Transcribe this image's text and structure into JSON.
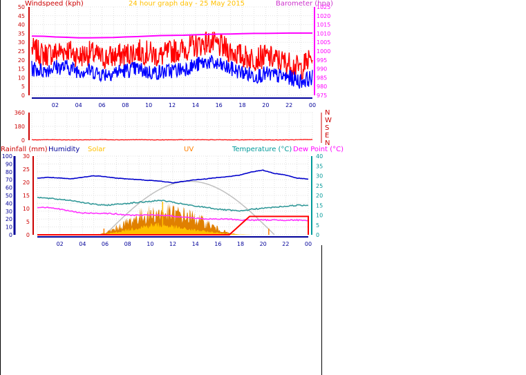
{
  "colors": {
    "wind_gust": "#ff0000",
    "wind_avg": "#0000ff",
    "barometer": "#ff00ff",
    "direction": "#ff0000",
    "rain": "#ff0000",
    "humidity": "#0000cc",
    "solar": "#ffc000",
    "solar_dark": "#e08000",
    "uv": "#ff8000",
    "temperature": "#339999",
    "dewpoint": "#ff33ff",
    "theory_solar": "#c0c0c0",
    "axis_blue": "#000099",
    "axis_red": "#cc0000",
    "axis_teal": "#009999",
    "axis_magenta": "#ff00ff",
    "grid": "#e0e0e0",
    "frame": "#000000"
  },
  "panels": {
    "wind": {
      "left_title": "Windspeed (kph)",
      "center_title": "24 hour graph day - 25 May 2015",
      "right_title": "Barometer (hpa)"
    },
    "direction": {
      "right_labels": [
        "N",
        "W",
        "S",
        "E",
        "N"
      ]
    },
    "bottom": {
      "titles": {
        "rainfall": "Rainfall (mm)",
        "humidity": "Humidity",
        "solar": "Solar",
        "uv": "UV",
        "temperature": "Temperature (°C)",
        "dewpoint": "Dew Point (°C)"
      }
    },
    "hour_labels": [
      "02",
      "04",
      "06",
      "08",
      "10",
      "12",
      "14",
      "16",
      "18",
      "20",
      "22",
      "00"
    ]
  },
  "chart_data": [
    {
      "type": "line",
      "title": "24 hour graph day - 25 May 2015",
      "x": [
        0,
        1,
        2,
        3,
        4,
        5,
        6,
        7,
        8,
        9,
        10,
        11,
        12,
        13,
        14,
        15,
        16,
        17,
        18,
        19,
        20,
        21,
        22,
        23,
        24
      ],
      "xticks": [
        "02",
        "04",
        "06",
        "08",
        "10",
        "12",
        "14",
        "16",
        "18",
        "20",
        "22",
        "00"
      ],
      "ylabel": "Windspeed (kph)",
      "ylim": [
        0,
        50
      ],
      "yticks": [
        0,
        5,
        10,
        15,
        20,
        25,
        30,
        35,
        40,
        45,
        50
      ],
      "y2label": "Barometer (hpa)",
      "y2lim": [
        975,
        1025
      ],
      "y2ticks": [
        975,
        980,
        985,
        990,
        995,
        1000,
        1005,
        1010,
        1015,
        1020,
        1025
      ],
      "grid": true,
      "series": [
        {
          "values": [
            26,
            23,
            24,
            26,
            22,
            24,
            21,
            22,
            23,
            25,
            24,
            22,
            25,
            26,
            28,
            30,
            28,
            25,
            22,
            21,
            22,
            20,
            18,
            15,
            22
          ]
        },
        {
          "values": [
            15,
            14,
            16,
            16,
            14,
            14,
            12,
            13,
            14,
            15,
            13,
            13,
            14,
            15,
            17,
            19,
            17,
            15,
            13,
            11,
            12,
            11,
            10,
            8,
            10
          ]
        },
        {
          "axis": "right",
          "values": [
            1008.5,
            1008.4,
            1008,
            1007.8,
            1007.5,
            1007.5,
            1007.6,
            1007.7,
            1008,
            1008.2,
            1008.5,
            1008.8,
            1008.9,
            1009,
            1009.2,
            1009.4,
            1009.6,
            1009.7,
            1009.9,
            1010,
            1010,
            1010.1,
            1010.2,
            1010.2,
            1010.2
          ]
        }
      ]
    },
    {
      "type": "line",
      "x": [
        0,
        1,
        2,
        3,
        4,
        5,
        6,
        7,
        8,
        9,
        10,
        11,
        12,
        13,
        14,
        15,
        16,
        17,
        18,
        19,
        20,
        21,
        22,
        23,
        24
      ],
      "xticks": [
        "02",
        "04",
        "06",
        "08",
        "10",
        "12",
        "14",
        "16",
        "18",
        "20",
        "22",
        "00"
      ],
      "ylim": [
        0,
        360
      ],
      "yticks": [
        0,
        180,
        360
      ],
      "y2ticks": [
        "N",
        "W",
        "S",
        "E",
        "N"
      ],
      "grid": true,
      "series": [
        {
          "values": [
            5,
            6,
            7,
            5,
            4,
            6,
            8,
            6,
            5,
            7,
            5,
            4,
            5,
            6,
            7,
            5,
            6,
            5,
            4,
            6,
            5,
            4,
            5,
            6,
            8
          ]
        }
      ]
    },
    {
      "type": "area",
      "x": [
        0,
        1,
        2,
        3,
        4,
        5,
        6,
        7,
        8,
        9,
        10,
        11,
        12,
        13,
        14,
        15,
        16,
        17,
        18,
        19,
        20,
        21,
        22,
        23,
        24
      ],
      "xticks": [
        "02",
        "04",
        "06",
        "08",
        "10",
        "12",
        "14",
        "16",
        "18",
        "20",
        "22",
        "00"
      ],
      "grid": true,
      "axes": {
        "rainfall": {
          "ylim": [
            0,
            30
          ],
          "ticks": [
            0,
            5,
            10,
            15,
            20,
            25,
            30
          ]
        },
        "humidity": {
          "ylim": [
            0,
            100
          ],
          "ticks": [
            0,
            10,
            20,
            30,
            40,
            50,
            60,
            70,
            80,
            90,
            100
          ]
        },
        "temperature": {
          "ylim": [
            0,
            40
          ],
          "ticks": [
            0,
            5,
            10,
            15,
            20,
            25,
            30,
            35,
            40
          ]
        }
      },
      "series": [
        {
          "axis": "humidity",
          "values": [
            72,
            73,
            72,
            71,
            73,
            75,
            74,
            72,
            71,
            70,
            69,
            68,
            66,
            68,
            70,
            71,
            73,
            74,
            76,
            80,
            82,
            78,
            76,
            72,
            71
          ]
        },
        {
          "axis": "temperature",
          "values": [
            19,
            18.5,
            18,
            17.5,
            16.5,
            15.5,
            15,
            15.5,
            16,
            16.5,
            17,
            17.5,
            16.5,
            15.5,
            14.5,
            14,
            13,
            12.5,
            12,
            13,
            13.5,
            14,
            14.5,
            15,
            15
          ]
        },
        {
          "axis": "temperature",
          "values": [
            14,
            14,
            13,
            12,
            11,
            11,
            11,
            10.5,
            10,
            10,
            10,
            10,
            9.5,
            9,
            8.5,
            8,
            8,
            8,
            7.5,
            7.5,
            7.5,
            7.5,
            7.5,
            7.5,
            7
          ]
        },
        {
          "axis": "rainfall",
          "values": [
            0,
            0,
            0,
            0,
            0,
            0,
            0,
            0,
            0,
            0,
            0,
            0,
            0,
            0,
            0,
            0,
            0,
            0,
            0,
            4,
            7,
            7,
            7,
            7,
            7
          ]
        },
        {
          "axis": "humidity",
          "values": [
            0,
            0,
            0,
            0,
            0,
            0,
            2,
            8,
            15,
            22,
            28,
            30,
            24,
            18,
            14,
            10,
            6,
            3,
            1,
            0,
            0,
            0,
            0,
            0,
            0
          ]
        },
        {
          "axis": "humidity",
          "values": [
            0,
            0,
            0,
            0,
            0,
            0,
            5,
            20,
            38,
            55,
            63,
            66,
            65,
            60,
            50,
            35,
            18,
            5,
            0,
            0,
            0,
            0,
            0,
            0,
            0
          ]
        }
      ]
    }
  ]
}
